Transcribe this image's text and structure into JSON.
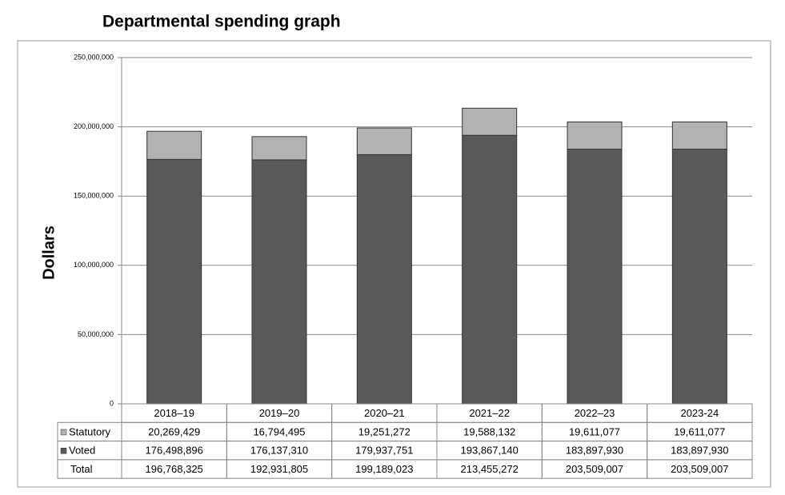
{
  "chart_data": {
    "type": "stacked_bar",
    "title": "Departmental spending graph",
    "y_label": "Dollars",
    "categories": [
      "2018–19",
      "2019–20",
      "2020–21",
      "2021–22",
      "2022–23",
      "2023-24"
    ],
    "series": [
      {
        "name": "Statutory",
        "color": "#b2b2b2",
        "values": [
          20269429,
          16794495,
          19251272,
          19588132,
          19611077,
          19611077
        ],
        "value_labels": [
          "20,269,429",
          "16,794,495",
          "19,251,272",
          "19,588,132",
          "19,611,077",
          "19,611,077"
        ]
      },
      {
        "name": "Voted",
        "color": "#595959",
        "values": [
          176498896,
          176137310,
          179937751,
          193867140,
          183897930,
          183897930
        ],
        "value_labels": [
          "176,498,896",
          "176,137,310",
          "179,937,751",
          "193,867,140",
          "183,897,930",
          "183,897,930"
        ]
      }
    ],
    "totals": {
      "name": "Total",
      "values": [
        196768325,
        192931805,
        199189023,
        213455272,
        203509007,
        203509007
      ],
      "value_labels": [
        "196,768,325",
        "192,931,805",
        "199,189,023",
        "213,455,272",
        "203,509,007",
        "203,509,007"
      ]
    },
    "ylim": [
      0,
      250000000
    ],
    "yticks": [
      0,
      {
        "value": 50000000,
        "label": "50,000,000"
      },
      {
        "value": 100000000,
        "label": "100,000,000"
      },
      {
        "value": 150000000,
        "label": "150,000,000"
      },
      {
        "value": 200000000,
        "label": "200,000,000"
      },
      {
        "value": 250000000,
        "label": "250,000,000"
      }
    ],
    "grid": true
  }
}
